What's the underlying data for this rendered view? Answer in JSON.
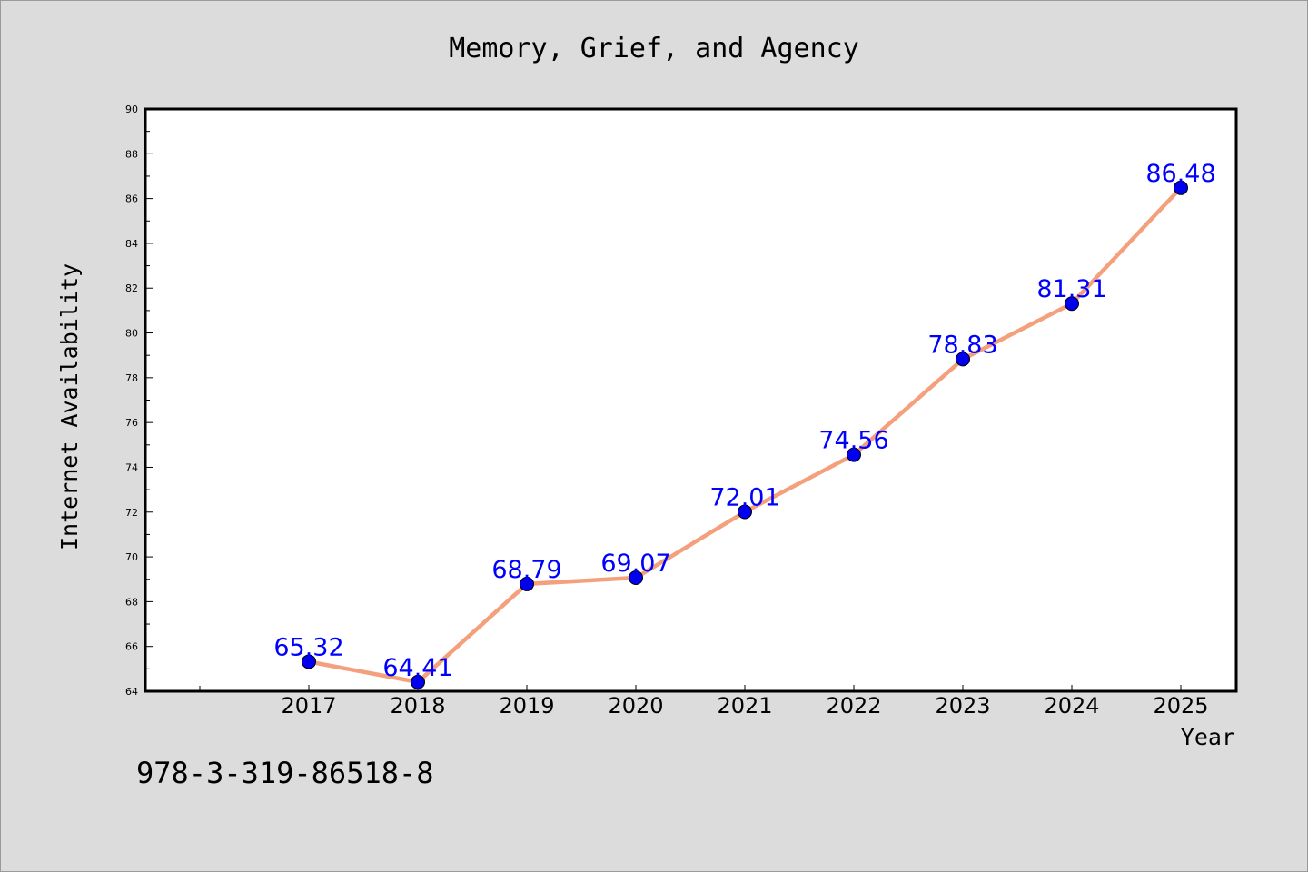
{
  "chart_data": {
    "type": "line",
    "title": "Memory, Grief, and Agency",
    "xlabel": "Year",
    "ylabel": "Internet Availability",
    "categories": [
      "2017",
      "2018",
      "2019",
      "2020",
      "2021",
      "2022",
      "2023",
      "2024",
      "2025"
    ],
    "values": [
      65.32,
      64.41,
      68.79,
      69.07,
      72.01,
      74.56,
      78.83,
      81.31,
      86.48
    ],
    "data_labels": [
      "65.32",
      "64.41",
      "68.79",
      "69.07",
      "72.01",
      "74.56",
      "78.83",
      "81.31",
      "86.48"
    ],
    "ylim": [
      64,
      90
    ],
    "yticks": [
      64,
      66,
      68,
      70,
      72,
      74,
      76,
      78,
      80,
      82,
      84,
      86,
      88,
      90
    ],
    "grid": false,
    "legend": "none",
    "colors": {
      "line": "#f4a07c",
      "marker": "#0000ee",
      "label": "#0000ff",
      "plot_background": "#ffffff",
      "page_background": "#dcdcdc"
    }
  },
  "footer": {
    "code": "978-3-319-86518-8"
  }
}
